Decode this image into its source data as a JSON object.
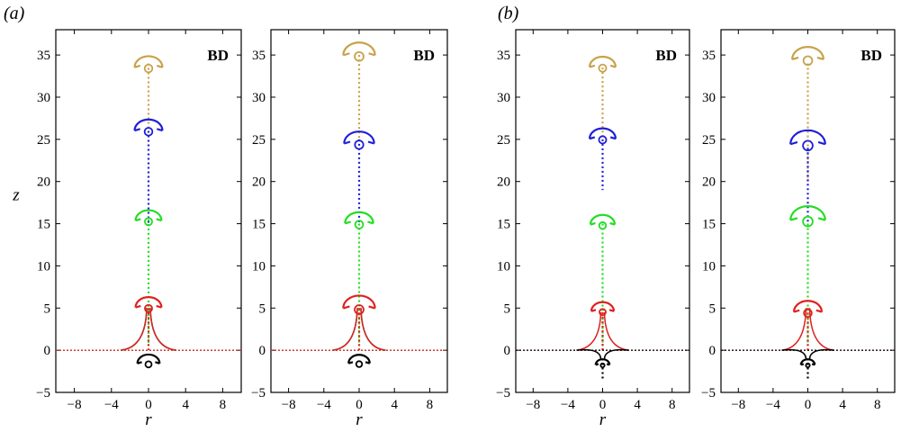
{
  "figure": {
    "panel_a_label": "(a)",
    "panel_b_label": "(b)"
  },
  "colors": {
    "gold": "#c8a24a",
    "blue": "#1f1fd6",
    "green": "#22dd22",
    "red": "#e02020",
    "black": "#000000"
  },
  "chart_data": [
    {
      "type": "scatter",
      "panel": "(a)",
      "annotation": "BD",
      "xlabel": "r",
      "ylabel": "z",
      "xlim": [
        -10,
        10
      ],
      "ylim": [
        -5,
        38
      ],
      "xticks": [
        -8,
        -4,
        0,
        4,
        8
      ],
      "yticks": [
        -5,
        0,
        5,
        10,
        15,
        20,
        25,
        30,
        35
      ],
      "grid": false,
      "series": [
        {
          "color": "gold",
          "cap_z": 34.0,
          "cap_w": 1.5,
          "jet_top": 34.0,
          "jet_bottom": 20.0,
          "baseline": false
        },
        {
          "color": "blue",
          "cap_z": 26.5,
          "cap_w": 1.5,
          "jet_top": 26.0,
          "jet_bottom": 15.0,
          "baseline": true
        },
        {
          "color": "green",
          "cap_z": 15.8,
          "cap_w": 1.4,
          "jet_top": 15.5,
          "jet_bottom": 0.5,
          "baseline": true
        },
        {
          "color": "red",
          "cap_z": 5.5,
          "cap_w": 1.4,
          "jet_top": 5.0,
          "jet_bottom": 0.0,
          "baseline": true
        },
        {
          "color": "black",
          "cap_z": -1.2,
          "cap_w": 1.2,
          "jet_top": -1.2,
          "jet_bottom": -1.2,
          "baseline": false
        }
      ]
    },
    {
      "type": "scatter",
      "panel": "(a)",
      "annotation": "BD",
      "xlabel": "r",
      "ylabel": "",
      "xlim": [
        -10,
        10
      ],
      "ylim": [
        -5,
        38
      ],
      "xticks": [
        -8,
        -4,
        0,
        4,
        8
      ],
      "yticks": [
        -5,
        0,
        5,
        10,
        15,
        20,
        25,
        30,
        35
      ],
      "grid": false,
      "series": [
        {
          "color": "gold",
          "cap_z": 35.5,
          "cap_w": 1.8,
          "jet_top": 35.0,
          "jet_bottom": 25.0,
          "baseline": false
        },
        {
          "color": "blue",
          "cap_z": 25.0,
          "cap_w": 1.7,
          "jet_top": 25.0,
          "jet_bottom": 15.0,
          "baseline": true
        },
        {
          "color": "green",
          "cap_z": 15.5,
          "cap_w": 1.6,
          "jet_top": 15.0,
          "jet_bottom": 0.5,
          "baseline": true
        },
        {
          "color": "red",
          "cap_z": 5.5,
          "cap_w": 1.8,
          "jet_top": 5.0,
          "jet_bottom": 0.0,
          "baseline": true
        },
        {
          "color": "black",
          "cap_z": -1.2,
          "cap_w": 1.2,
          "jet_top": -1.2,
          "jet_bottom": -1.2,
          "baseline": false
        }
      ]
    },
    {
      "type": "scatter",
      "panel": "(b)",
      "annotation": "BD",
      "xlabel": "r",
      "ylabel": "",
      "xlim": [
        -10,
        10
      ],
      "ylim": [
        -5,
        38
      ],
      "xticks": [
        -8,
        -4,
        0,
        4,
        8
      ],
      "yticks": [
        -5,
        0,
        5,
        10,
        15,
        20,
        25,
        30,
        35
      ],
      "grid": false,
      "series": [
        {
          "color": "gold",
          "cap_z": 34.0,
          "cap_w": 1.5,
          "jet_top": 33.5,
          "jet_bottom": 25.0,
          "baseline": false
        },
        {
          "color": "blue",
          "cap_z": 25.5,
          "cap_w": 1.5,
          "jet_top": 25.0,
          "jet_bottom": 19.0,
          "baseline": false
        },
        {
          "color": "green",
          "cap_z": 15.3,
          "cap_w": 1.4,
          "jet_top": 15.0,
          "jet_bottom": 0.5,
          "baseline": false
        },
        {
          "color": "red",
          "cap_z": 5.0,
          "cap_w": 1.3,
          "jet_top": 4.5,
          "jet_bottom": 0.0,
          "baseline": true
        },
        {
          "color": "black",
          "cap_z": -1.5,
          "cap_w": 0.8,
          "jet_top": -1.0,
          "jet_bottom": -3.5,
          "baseline": true
        }
      ]
    },
    {
      "type": "scatter",
      "panel": "(b)",
      "annotation": "BD",
      "xlabel": "",
      "ylabel": "",
      "xlim": [
        -10,
        10
      ],
      "ylim": [
        -5,
        38
      ],
      "xticks": [
        -8,
        -4,
        0,
        4,
        8
      ],
      "yticks": [
        -5,
        0,
        5,
        10,
        15,
        20,
        25,
        30,
        35
      ],
      "grid": false,
      "series": [
        {
          "color": "gold",
          "cap_z": 35.0,
          "cap_w": 1.8,
          "jet_top": 34.0,
          "jet_bottom": 20.0,
          "baseline": false
        },
        {
          "color": "blue",
          "cap_z": 25.0,
          "cap_w": 2.0,
          "jet_top": 24.0,
          "jet_bottom": 15.0,
          "baseline": false
        },
        {
          "color": "green",
          "cap_z": 16.0,
          "cap_w": 2.0,
          "jet_top": 15.0,
          "jet_bottom": 0.5,
          "baseline": false
        },
        {
          "color": "red",
          "cap_z": 5.0,
          "cap_w": 1.6,
          "jet_top": 5.0,
          "jet_bottom": 0.0,
          "baseline": true
        },
        {
          "color": "black",
          "cap_z": -1.5,
          "cap_w": 0.8,
          "jet_top": -1.0,
          "jet_bottom": -3.5,
          "baseline": true
        }
      ]
    }
  ]
}
